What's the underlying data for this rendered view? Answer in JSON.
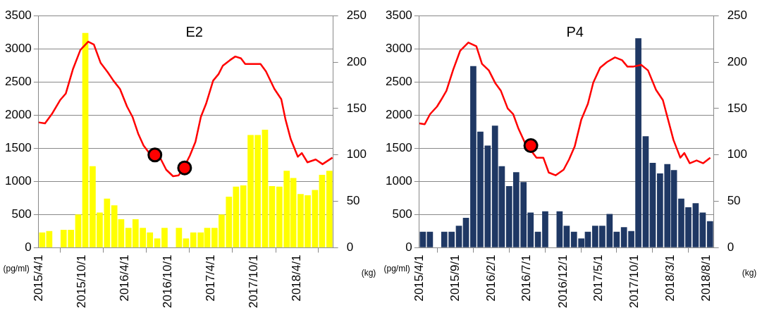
{
  "chart_data": [
    {
      "type": "bar",
      "title": "E2",
      "ylabel": "(pg/ml)",
      "y2label": "(kg)",
      "x": [
        "2015-04-16",
        "2015-05-16",
        "2015-06-16",
        "2015-07-16",
        "2015-08-16",
        "2015-09-16",
        "2015-10-16",
        "2015-11-16",
        "2015-12-16",
        "2016-01-16",
        "2016-02-16",
        "2016-03-16",
        "2016-04-16",
        "2016-05-16",
        "2016-06-16",
        "2016-07-16",
        "2016-08-16",
        "2016-09-16",
        "2016-10-16",
        "2016-11-16",
        "2016-12-16",
        "2017-01-16",
        "2017-02-16",
        "2017-03-16",
        "2017-04-16",
        "2017-05-16",
        "2017-06-16",
        "2017-07-16",
        "2017-08-16",
        "2017-09-16",
        "2017-10-16",
        "2017-11-16",
        "2017-12-16",
        "2018-01-16",
        "2018-02-16",
        "2018-03-16",
        "2018-04-16",
        "2018-05-16",
        "2018-06-16",
        "2018-07-16",
        "2018-08-16"
      ],
      "series": [
        {
          "color": "#ffff00",
          "values": [
            230,
            250,
            null,
            270,
            270,
            500,
            3240,
            1230,
            530,
            740,
            640,
            430,
            300,
            430,
            300,
            230,
            140,
            300,
            null,
            300,
            140,
            230,
            230,
            300,
            300,
            500,
            770,
            920,
            940,
            1700,
            1700,
            1780,
            930,
            920,
            1160,
            1050,
            810,
            790,
            870,
            1100,
            1160
          ]
        },
        {
          "type": "line",
          "axis": "y2",
          "color": "#ff0000",
          "x": [
            "2015-04-01",
            "2015-04-28",
            "2015-05-27",
            "2015-07-01",
            "2015-07-25",
            "2015-08-24",
            "2015-09-25",
            "2015-10-28",
            "2015-11-21",
            "2015-12-20",
            "2016-01-19",
            "2016-02-12",
            "2016-03-11",
            "2016-04-10",
            "2016-05-03",
            "2016-05-27",
            "2016-06-19",
            "2016-07-13",
            "2016-08-06",
            "2016-08-30",
            "2016-09-23",
            "2016-10-22",
            "2016-11-15",
            "2016-12-08",
            "2017-01-01",
            "2017-01-25",
            "2017-02-17",
            "2017-03-11",
            "2017-04-10",
            "2017-05-03",
            "2017-05-21",
            "2017-06-20",
            "2017-07-13",
            "2017-08-06",
            "2017-08-24",
            "2017-09-23",
            "2017-10-28",
            "2017-11-20",
            "2017-12-26",
            "2018-01-24",
            "2018-02-11",
            "2018-03-05",
            "2018-04-04",
            "2018-04-21",
            "2018-05-15",
            "2018-06-19",
            "2018-07-18",
            "2018-08-05",
            "2018-08-29"
          ],
          "values": [
            135,
            134,
            144,
            159,
            166,
            192,
            213,
            222,
            219,
            199,
            189,
            180,
            171,
            152,
            141,
            123,
            110,
            102,
            98,
            96,
            84,
            77,
            78,
            87,
            99,
            114,
            141,
            155,
            180,
            187,
            196,
            202,
            206,
            204,
            198,
            198,
            198,
            190,
            171,
            160,
            138,
            117,
            98,
            102,
            92,
            95,
            90,
            93,
            97
          ]
        },
        {
          "type": "scatter",
          "axis": "y2",
          "color": "#ff0000",
          "marker": "circle",
          "x": [
            "2016-08-06",
            "2016-12-10"
          ],
          "values": [
            100,
            86
          ]
        }
      ],
      "xlim": [
        "2015-04-01",
        "2018-09-01"
      ],
      "xticks": [
        {
          "value": "2015-04-01",
          "label": "2015/4/1"
        },
        {
          "value": "2015-10-01",
          "label": "2015/10/1"
        },
        {
          "value": "2016-04-01",
          "label": "2016/4/1"
        },
        {
          "value": "2016-10-01",
          "label": "2016/10/1"
        },
        {
          "value": "2017-04-01",
          "label": "2017/4/1"
        },
        {
          "value": "2017-10-01",
          "label": "2017/10/1"
        },
        {
          "value": "2018-04-01",
          "label": "2018/4/1"
        }
      ],
      "ylim": [
        0,
        3500
      ],
      "yticks": [
        0,
        500,
        1000,
        1500,
        2000,
        2500,
        3000,
        3500
      ],
      "y2lim": [
        0,
        250
      ],
      "y2ticks": [
        0,
        50,
        100,
        150,
        200,
        250
      ],
      "grid": "y"
    },
    {
      "type": "bar",
      "title": "P4",
      "ylabel": "(pg/ml)",
      "y2label": "(kg)",
      "x": [
        "2015-04-16",
        "2015-05-16",
        "2015-06-16",
        "2015-07-16",
        "2015-08-16",
        "2015-09-16",
        "2015-10-16",
        "2015-11-16",
        "2015-12-16",
        "2016-01-16",
        "2016-02-16",
        "2016-03-16",
        "2016-04-16",
        "2016-05-16",
        "2016-06-16",
        "2016-07-16",
        "2016-08-16",
        "2016-09-16",
        "2016-10-16",
        "2016-11-16",
        "2016-12-16",
        "2017-01-16",
        "2017-02-16",
        "2017-03-16",
        "2017-04-16",
        "2017-05-16",
        "2017-06-16",
        "2017-07-16",
        "2017-08-16",
        "2017-09-16",
        "2017-10-16",
        "2017-11-16",
        "2017-12-16",
        "2018-01-16",
        "2018-02-16",
        "2018-03-16",
        "2018-04-16",
        "2018-05-16",
        "2018-06-16",
        "2018-07-16",
        "2018-08-16"
      ],
      "series": [
        {
          "color": "#1f3864",
          "values": [
            240,
            240,
            null,
            240,
            240,
            330,
            450,
            2740,
            1750,
            1540,
            1840,
            1230,
            930,
            1140,
            990,
            530,
            240,
            550,
            null,
            550,
            330,
            240,
            140,
            240,
            330,
            330,
            510,
            240,
            310,
            250,
            3160,
            1680,
            1280,
            1120,
            1260,
            1170,
            740,
            610,
            670,
            530,
            400
          ]
        },
        {
          "type": "line",
          "axis": "y2",
          "color": "#ff0000",
          "x": [
            "2015-04-01",
            "2015-04-24",
            "2015-05-17",
            "2015-06-15",
            "2015-07-02",
            "2015-07-25",
            "2015-08-23",
            "2015-09-21",
            "2015-10-26",
            "2015-11-29",
            "2015-12-23",
            "2016-01-21",
            "2016-02-18",
            "2016-03-12",
            "2016-04-10",
            "2016-05-03",
            "2016-05-26",
            "2016-06-24",
            "2016-07-17",
            "2016-08-10",
            "2016-09-08",
            "2016-10-01",
            "2016-10-30",
            "2016-12-03",
            "2016-12-26",
            "2017-01-19",
            "2017-02-16",
            "2017-03-16",
            "2017-04-08",
            "2017-05-07",
            "2017-06-05",
            "2017-07-09",
            "2017-08-08",
            "2017-08-31",
            "2017-09-23",
            "2017-10-28",
            "2017-11-26",
            "2017-12-30",
            "2018-01-28",
            "2018-02-19",
            "2018-03-14",
            "2018-04-12",
            "2018-04-29",
            "2018-05-22",
            "2018-06-20",
            "2018-07-18",
            "2018-08-17"
          ],
          "values": [
            134,
            133,
            144,
            152,
            159,
            169,
            192,
            212,
            221,
            217,
            198,
            191,
            177,
            169,
            150,
            144,
            128,
            112,
            105,
            97,
            97,
            81,
            78,
            84,
            95,
            109,
            138,
            155,
            178,
            194,
            200,
            205,
            202,
            195,
            195,
            197,
            191,
            170,
            159,
            138,
            116,
            97,
            102,
            91,
            94,
            91,
            97
          ]
        },
        {
          "type": "scatter",
          "axis": "y2",
          "color": "#ff0000",
          "marker": "circle",
          "x": [
            "2016-07-17"
          ],
          "values": [
            110
          ]
        }
      ],
      "xlim": [
        "2015-04-01",
        "2018-09-01"
      ],
      "xticks": [
        {
          "value": "2015-04-01",
          "label": "2015/4/1"
        },
        {
          "value": "2015-09-01",
          "label": "2015/9/1"
        },
        {
          "value": "2016-02-01",
          "label": "2016/2/1"
        },
        {
          "value": "2016-07-01",
          "label": "2016/7/1"
        },
        {
          "value": "2016-12-01",
          "label": "2016/12/1"
        },
        {
          "value": "2017-05-01",
          "label": "2017/5/1"
        },
        {
          "value": "2017-10-01",
          "label": "2017/10/1"
        },
        {
          "value": "2018-03-01",
          "label": "2018/3/1"
        },
        {
          "value": "2018-08-01",
          "label": "2018/8/1"
        }
      ],
      "ylim": [
        0,
        3500
      ],
      "yticks": [
        0,
        500,
        1000,
        1500,
        2000,
        2500,
        3000,
        3500
      ],
      "y2lim": [
        0,
        250
      ],
      "y2ticks": [
        0,
        50,
        100,
        150,
        200,
        250
      ],
      "grid": "y"
    }
  ]
}
